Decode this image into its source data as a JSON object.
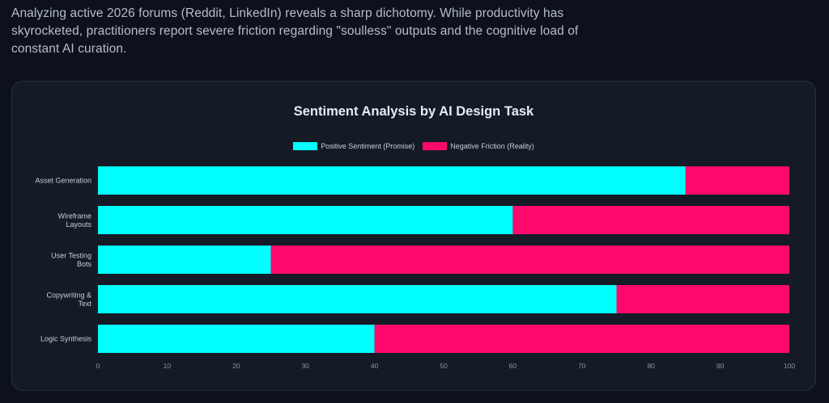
{
  "intro": {
    "text": "Analyzing active 2026 forums (Reddit, LinkedIn) reveals a sharp dichotomy. While productivity has skyrocketed, practitioners report severe friction regarding \"soulless\" outputs and the cognitive load of constant AI curation."
  },
  "colors": {
    "positive": "#00ffff",
    "negative": "#ff0a6c",
    "background": "#0c111b",
    "card": "#141b26"
  },
  "chart_data": {
    "type": "bar",
    "orientation": "horizontal",
    "stacked": true,
    "title": "Sentiment Analysis by AI Design Task",
    "categories": [
      [
        "Asset Generation"
      ],
      [
        "Wireframe",
        "Layouts"
      ],
      [
        "User Testing",
        "Bots"
      ],
      [
        "Copywriting &",
        "Text"
      ],
      [
        "Logic Synthesis"
      ]
    ],
    "series": [
      {
        "name": "Positive Sentiment (Promise)",
        "values": [
          85,
          60,
          25,
          75,
          40
        ]
      },
      {
        "name": "Negative Friction (Reality)",
        "values": [
          15,
          40,
          75,
          25,
          60
        ]
      }
    ],
    "xlim": [
      0,
      100
    ],
    "xticks": [
      0,
      10,
      20,
      30,
      40,
      50,
      60,
      70,
      80,
      90,
      100
    ],
    "legend_position": "top-center",
    "grid": false
  }
}
